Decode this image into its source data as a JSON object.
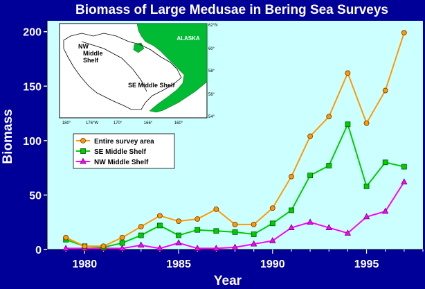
{
  "chart_data": {
    "type": "line",
    "title": "Biomass of Large Medusae in Bering Sea Surveys",
    "xlabel": "Year",
    "ylabel": "Biomass",
    "xlim": [
      1978,
      1998
    ],
    "ylim": [
      0,
      210
    ],
    "xticks": [
      1980,
      1985,
      1990,
      1995
    ],
    "yticks": [
      0,
      50,
      100,
      150,
      200
    ],
    "x": [
      1979,
      1980,
      1981,
      1982,
      1983,
      1984,
      1985,
      1986,
      1987,
      1988,
      1989,
      1990,
      1991,
      1992,
      1993,
      1994,
      1995,
      1996,
      1997
    ],
    "series": [
      {
        "name": "Entire survey area",
        "color": "#ff9900",
        "marker": "circle",
        "values": [
          11,
          3,
          3,
          11,
          21,
          31,
          26,
          28,
          37,
          23,
          23,
          38,
          67,
          104,
          122,
          162,
          116,
          146,
          199
        ]
      },
      {
        "name": "SE Middle Shelf",
        "color": "#00cc00",
        "marker": "square",
        "values": [
          9,
          3,
          2,
          6,
          13,
          22,
          13,
          18,
          17,
          16,
          14,
          24,
          36,
          68,
          77,
          115,
          58,
          80,
          76
        ]
      },
      {
        "name": "NW Middle Shelf",
        "color": "#ff00ff",
        "marker": "triangle",
        "values": [
          1,
          1,
          1,
          1,
          4,
          1,
          6,
          1,
          1,
          2,
          5,
          8,
          20,
          25,
          20,
          15,
          30,
          35,
          62
        ]
      }
    ],
    "legend_position": "center-left",
    "grid": false,
    "plot_background": "#ccffff"
  },
  "inset_map": {
    "region_label": "ALASKA",
    "area_labels": [
      "NW Middle Shelf",
      "SE Middle Shelf"
    ],
    "lon_ticks": [
      "180°",
      "176°W",
      "170°",
      "166°",
      "160°"
    ],
    "lat_ticks": [
      "62°N",
      "60°",
      "58°",
      "56°",
      "54°"
    ],
    "land_color": "#00bb33"
  }
}
